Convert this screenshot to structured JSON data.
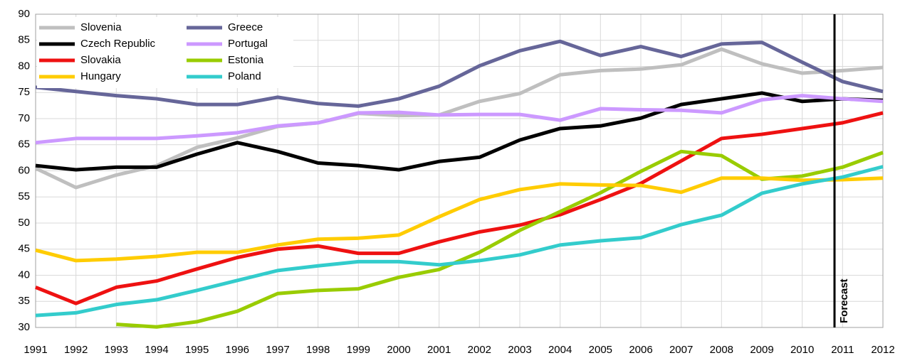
{
  "chart_data": {
    "type": "line",
    "x": [
      1991,
      1992,
      1993,
      1994,
      1995,
      1996,
      1997,
      1998,
      1999,
      2000,
      2001,
      2002,
      2003,
      2004,
      2005,
      2006,
      2007,
      2008,
      2009,
      2010,
      2011,
      2012
    ],
    "xlim": [
      1991,
      2012
    ],
    "xticks": [
      1991,
      1992,
      1993,
      1994,
      1995,
      1996,
      1997,
      1998,
      1999,
      2000,
      2001,
      2002,
      2003,
      2004,
      2005,
      2006,
      2007,
      2008,
      2009,
      2010,
      2011,
      2012
    ],
    "ylim": [
      30,
      90
    ],
    "yticks": [
      30,
      35,
      40,
      45,
      50,
      55,
      60,
      65,
      70,
      75,
      80,
      85,
      90
    ],
    "grid": true,
    "legend": "top-left",
    "forecast": {
      "x": 2010.8,
      "label": "Forecast"
    },
    "series": [
      {
        "name": "Slovenia",
        "color": "#bfbfbf",
        "values": [
          60.5,
          56.8,
          59.2,
          61.0,
          64.5,
          66.3,
          68.5,
          69.2,
          71.0,
          70.6,
          70.7,
          73.3,
          74.8,
          78.4,
          79.2,
          79.5,
          80.3,
          83.3,
          80.5,
          78.7,
          79.2,
          79.8
        ]
      },
      {
        "name": "Greece",
        "color": "#666699",
        "values": [
          76.0,
          75.2,
          74.4,
          73.8,
          72.7,
          72.7,
          74.1,
          72.9,
          72.4,
          73.8,
          76.2,
          80.1,
          83.0,
          84.8,
          82.1,
          83.8,
          81.9,
          84.3,
          84.6,
          80.8,
          77.1,
          75.2
        ]
      },
      {
        "name": "Czech Republic",
        "color": "#000000",
        "values": [
          61.0,
          60.2,
          60.7,
          60.7,
          63.2,
          65.4,
          63.7,
          61.5,
          61.0,
          60.2,
          61.8,
          62.6,
          65.9,
          68.1,
          68.6,
          70.1,
          72.7,
          73.8,
          74.9,
          73.3,
          73.8,
          73.5
        ]
      },
      {
        "name": "Portugal",
        "color": "#cc99ff",
        "values": [
          65.4,
          66.2,
          66.2,
          66.2,
          66.7,
          67.3,
          68.6,
          69.2,
          71.1,
          71.2,
          70.7,
          70.8,
          70.8,
          69.7,
          71.9,
          71.7,
          71.6,
          71.1,
          73.6,
          74.4,
          73.8,
          73.3
        ]
      },
      {
        "name": "Slovakia",
        "color": "#ee1111",
        "values": [
          37.7,
          34.6,
          37.7,
          38.9,
          41.2,
          43.4,
          45.0,
          45.6,
          44.2,
          44.2,
          46.4,
          48.3,
          49.6,
          51.6,
          54.5,
          57.6,
          61.9,
          66.2,
          67.0,
          68.1,
          69.2,
          71.1
        ]
      },
      {
        "name": "Estonia",
        "color": "#99cc00",
        "values": [
          null,
          null,
          30.6,
          30.1,
          31.1,
          33.1,
          36.5,
          37.1,
          37.4,
          39.6,
          41.1,
          44.4,
          48.6,
          52.2,
          55.8,
          59.9,
          63.7,
          62.9,
          58.4,
          59.0,
          60.7,
          63.5
        ]
      },
      {
        "name": "Hungary",
        "color": "#ffcc00",
        "values": [
          44.8,
          42.8,
          43.1,
          43.6,
          44.4,
          44.4,
          45.8,
          46.9,
          47.1,
          47.7,
          51.2,
          54.5,
          56.4,
          57.5,
          57.3,
          57.2,
          55.9,
          58.6,
          58.6,
          58.2,
          58.3,
          58.6
        ]
      },
      {
        "name": "Poland",
        "color": "#33cccc",
        "values": [
          32.3,
          32.8,
          34.4,
          35.3,
          37.1,
          39.0,
          40.9,
          41.8,
          42.6,
          42.6,
          42.0,
          42.8,
          43.9,
          45.8,
          46.6,
          47.2,
          49.7,
          51.5,
          55.7,
          57.5,
          58.8,
          60.8
        ]
      }
    ]
  }
}
